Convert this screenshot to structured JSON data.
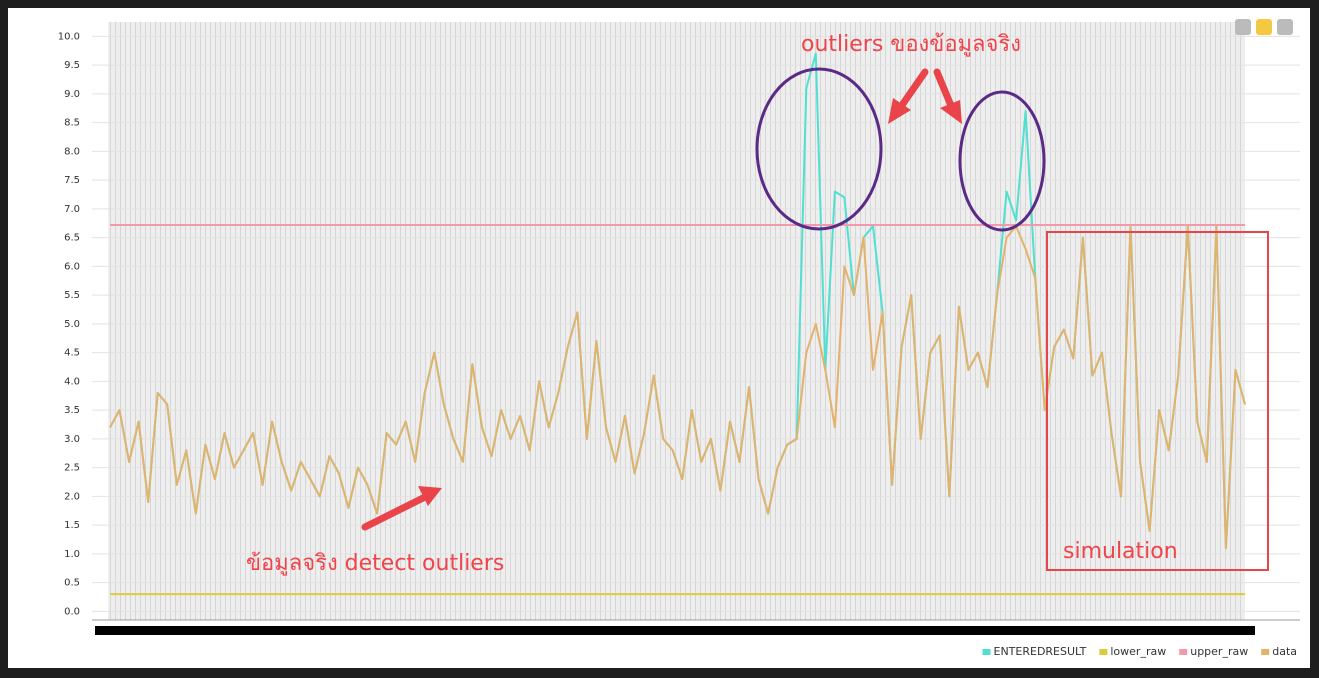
{
  "chart_data": {
    "type": "line",
    "annotations": [
      "outliers ของข้อมูลจริง",
      "ข้อมูลจริง detect outliers",
      "simulation"
    ],
    "ylim": [
      -0.15,
      10.25
    ],
    "yticks": [
      {
        "value": 0,
        "label": "0.0"
      },
      {
        "value": 0.5,
        "label": "0.5"
      },
      {
        "value": 1,
        "label": "1.0"
      },
      {
        "value": 1.5,
        "label": "1.5"
      },
      {
        "value": 2,
        "label": "2.0"
      },
      {
        "value": 2.5,
        "label": "2.5"
      },
      {
        "value": 3,
        "label": "3.0"
      },
      {
        "value": 3.5,
        "label": "3.5"
      },
      {
        "value": 4,
        "label": "4.0"
      },
      {
        "value": 4.5,
        "label": "4.5"
      },
      {
        "value": 5,
        "label": "5.0"
      },
      {
        "value": 5.5,
        "label": "5.5"
      },
      {
        "value": 6,
        "label": "6.0"
      },
      {
        "value": 6.5,
        "label": "6.5"
      },
      {
        "value": 7,
        "label": "7.0"
      },
      {
        "value": 7.5,
        "label": "7.5"
      },
      {
        "value": 8,
        "label": "8.0"
      },
      {
        "value": 8.5,
        "label": "8.5"
      },
      {
        "value": 9,
        "label": "9.0"
      },
      {
        "value": 9.5,
        "label": "9.5"
      },
      {
        "value": 10,
        "label": "10.0"
      }
    ],
    "grid": true,
    "series": [
      {
        "name": "ENTEREDRESULT",
        "color": "#4fe0d2",
        "values": [
          3.2,
          3.5,
          2.6,
          3.3,
          1.9,
          3.8,
          3.6,
          2.2,
          2.8,
          1.7,
          2.9,
          2.3,
          3.1,
          2.5,
          2.8,
          3.1,
          2.2,
          3.3,
          2.6,
          2.1,
          2.6,
          2.3,
          2.0,
          2.7,
          2.4,
          1.8,
          2.5,
          2.2,
          1.7,
          3.1,
          2.9,
          3.3,
          2.6,
          3.8,
          4.5,
          3.6,
          3.0,
          2.6,
          4.3,
          3.2,
          2.7,
          3.5,
          3.0,
          3.4,
          2.8,
          4.0,
          3.2,
          3.8,
          4.6,
          5.2,
          3.0,
          4.7,
          3.2,
          2.6,
          3.4,
          2.4,
          3.1,
          4.1,
          3.0,
          2.8,
          2.3,
          3.5,
          2.6,
          3.0,
          2.1,
          3.3,
          2.6,
          3.9,
          2.3,
          1.7,
          2.5,
          2.9,
          3.0,
          9.1,
          9.7,
          4.2,
          7.3,
          7.2,
          5.5,
          6.5,
          6.7,
          5.2,
          2.2,
          4.6,
          5.5,
          3.0,
          4.5,
          4.8,
          2.0,
          5.3,
          4.2,
          4.5,
          3.9,
          5.5,
          7.3,
          6.8,
          8.7,
          5.8,
          3.5,
          4.6,
          4.9,
          4.4,
          6.5,
          4.1,
          4.5,
          3.1,
          2.0,
          6.7,
          2.6,
          1.4,
          3.5,
          2.8,
          4.1,
          6.7,
          3.3,
          2.6,
          6.7,
          1.1,
          4.2,
          3.6
        ]
      },
      {
        "name": "lower_raw",
        "color": "#dccb3a",
        "values": [
          0.3,
          0.3,
          0.3,
          0.3,
          0.3,
          0.3,
          0.3,
          0.3,
          0.3,
          0.3,
          0.3,
          0.3,
          0.3,
          0.3,
          0.3,
          0.3,
          0.3,
          0.3,
          0.3,
          0.3,
          0.3,
          0.3,
          0.3,
          0.3,
          0.3,
          0.3,
          0.3,
          0.3,
          0.3,
          0.3,
          0.3,
          0.3,
          0.3,
          0.3,
          0.3,
          0.3,
          0.3,
          0.3,
          0.3,
          0.3,
          0.3,
          0.3,
          0.3,
          0.3,
          0.3,
          0.3,
          0.3,
          0.3,
          0.3,
          0.3,
          0.3,
          0.3,
          0.3,
          0.3,
          0.3,
          0.3,
          0.3,
          0.3,
          0.3,
          0.3,
          0.3,
          0.3,
          0.3,
          0.3,
          0.3,
          0.3,
          0.3,
          0.3,
          0.3,
          0.3,
          0.3,
          0.3,
          0.3,
          0.3,
          0.3,
          0.3,
          0.3,
          0.3,
          0.3,
          0.3,
          0.3,
          0.3,
          0.3,
          0.3,
          0.3,
          0.3,
          0.3,
          0.3,
          0.3,
          0.3,
          0.3,
          0.3,
          0.3,
          0.3,
          0.3,
          0.3,
          0.3,
          0.3,
          0.3,
          0.3,
          0.3,
          0.3,
          0.3,
          0.3,
          0.3,
          0.3,
          0.3,
          0.3,
          0.3,
          0.3,
          0.3,
          0.3,
          0.3,
          0.3,
          0.3,
          0.3,
          0.3,
          0.3,
          0.3,
          0.3
        ]
      },
      {
        "name": "upper_raw",
        "color": "#f29aac",
        "values": [
          6.72,
          6.72,
          6.72,
          6.72,
          6.72,
          6.72,
          6.72,
          6.72,
          6.72,
          6.72,
          6.72,
          6.72,
          6.72,
          6.72,
          6.72,
          6.72,
          6.72,
          6.72,
          6.72,
          6.72,
          6.72,
          6.72,
          6.72,
          6.72,
          6.72,
          6.72,
          6.72,
          6.72,
          6.72,
          6.72,
          6.72,
          6.72,
          6.72,
          6.72,
          6.72,
          6.72,
          6.72,
          6.72,
          6.72,
          6.72,
          6.72,
          6.72,
          6.72,
          6.72,
          6.72,
          6.72,
          6.72,
          6.72,
          6.72,
          6.72,
          6.72,
          6.72,
          6.72,
          6.72,
          6.72,
          6.72,
          6.72,
          6.72,
          6.72,
          6.72,
          6.72,
          6.72,
          6.72,
          6.72,
          6.72,
          6.72,
          6.72,
          6.72,
          6.72,
          6.72,
          6.72,
          6.72,
          6.72,
          6.72,
          6.72,
          6.72,
          6.72,
          6.72,
          6.72,
          6.72,
          6.72,
          6.72,
          6.72,
          6.72,
          6.72,
          6.72,
          6.72,
          6.72,
          6.72,
          6.72,
          6.72,
          6.72,
          6.72,
          6.72,
          6.72,
          6.72,
          6.72,
          6.72,
          6.72,
          6.72,
          6.72,
          6.72,
          6.72,
          6.72,
          6.72,
          6.72,
          6.72,
          6.72,
          6.72,
          6.72,
          6.72,
          6.72,
          6.72,
          6.72,
          6.72,
          6.72,
          6.72,
          6.72,
          6.72,
          6.72
        ]
      },
      {
        "name": "data",
        "color": "#e3b26c",
        "values": [
          3.2,
          3.5,
          2.6,
          3.3,
          1.9,
          3.8,
          3.6,
          2.2,
          2.8,
          1.7,
          2.9,
          2.3,
          3.1,
          2.5,
          2.8,
          3.1,
          2.2,
          3.3,
          2.6,
          2.1,
          2.6,
          2.3,
          2.0,
          2.7,
          2.4,
          1.8,
          2.5,
          2.2,
          1.7,
          3.1,
          2.9,
          3.3,
          2.6,
          3.8,
          4.5,
          3.6,
          3.0,
          2.6,
          4.3,
          3.2,
          2.7,
          3.5,
          3.0,
          3.4,
          2.8,
          4.0,
          3.2,
          3.8,
          4.6,
          5.2,
          3.0,
          4.7,
          3.2,
          2.6,
          3.4,
          2.4,
          3.1,
          4.1,
          3.0,
          2.8,
          2.3,
          3.5,
          2.6,
          3.0,
          2.1,
          3.3,
          2.6,
          3.9,
          2.3,
          1.7,
          2.5,
          2.9,
          3.0,
          4.5,
          5.0,
          4.2,
          3.2,
          6.0,
          5.5,
          6.5,
          4.2,
          5.2,
          2.2,
          4.6,
          5.5,
          3.0,
          4.5,
          4.8,
          2.0,
          5.3,
          4.2,
          4.5,
          3.9,
          5.5,
          6.5,
          6.7,
          6.3,
          5.8,
          3.5,
          4.6,
          4.9,
          4.4,
          6.5,
          4.1,
          4.5,
          3.1,
          2.0,
          6.7,
          2.6,
          1.4,
          3.5,
          2.8,
          4.1,
          6.7,
          3.3,
          2.6,
          6.7,
          1.1,
          4.2,
          3.6
        ]
      }
    ]
  }
}
